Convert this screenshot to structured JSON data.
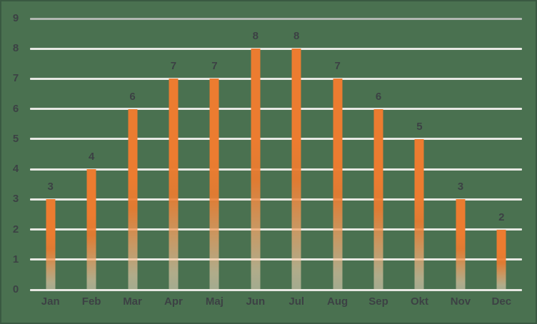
{
  "chart_data": {
    "type": "bar",
    "title": "",
    "xlabel": "",
    "ylabel": "",
    "categories": [
      "Jan",
      "Feb",
      "Mar",
      "Apr",
      "Maj",
      "Jun",
      "Jul",
      "Aug",
      "Sep",
      "Okt",
      "Nov",
      "Dec"
    ],
    "values": [
      3,
      4,
      6,
      7,
      7,
      8,
      8,
      7,
      6,
      5,
      3,
      2
    ],
    "data_labels": [
      "3",
      "4",
      "6",
      "7",
      "7",
      "8",
      "8",
      "7",
      "6",
      "5",
      "3",
      "2"
    ],
    "ylim": [
      0,
      9
    ],
    "yticks": [
      "9",
      "8",
      "7",
      "6",
      "5",
      "4",
      "3",
      "2",
      "1",
      "0"
    ],
    "grid": true,
    "legend_position": "none"
  },
  "colors": {
    "background": "#4A7150",
    "frame_border": "#3A5942",
    "gridline": "#E7E8E3",
    "gridline_top": "#B1B8B1",
    "bar_orange": "#EC7C30",
    "bar_fade": "#FBDFC9",
    "label_text": "#3C4144"
  }
}
